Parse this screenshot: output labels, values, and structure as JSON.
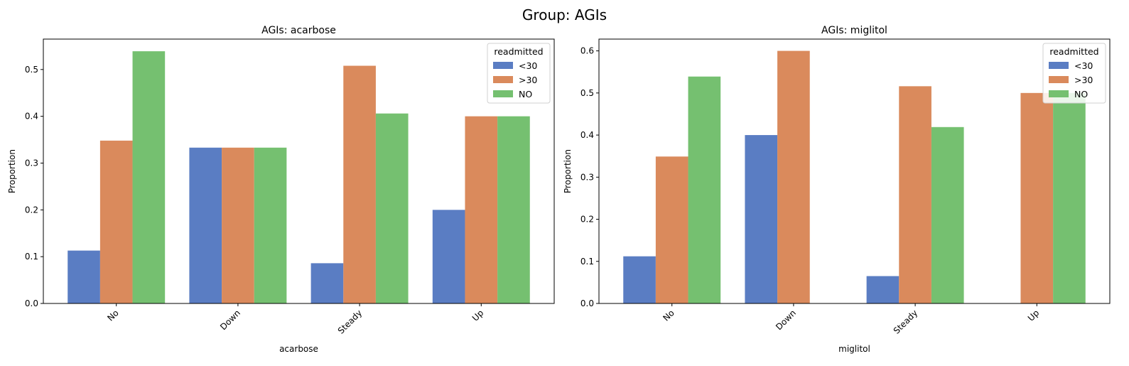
{
  "figure": {
    "suptitle": "Group: AGIs"
  },
  "chart_data": [
    {
      "type": "bar",
      "title": "AGIs: acarbose",
      "xlabel": "acarbose",
      "ylabel": "Proportion",
      "categories": [
        "No",
        "Down",
        "Steady",
        "Up"
      ],
      "ylim": [
        0,
        0.565
      ],
      "yticks": [
        0.0,
        0.1,
        0.2,
        0.3,
        0.4,
        0.5
      ],
      "ytick_labels": [
        "0.0",
        "0.1",
        "0.2",
        "0.3",
        "0.4",
        "0.5"
      ],
      "legend_title": "readmitted",
      "legend_position": "top-right",
      "grid": false,
      "series": [
        {
          "name": "<30",
          "color": "#5a7dc3",
          "values": [
            0.113,
            0.333,
            0.086,
            0.2
          ]
        },
        {
          "name": ">30",
          "color": "#da8a5c",
          "values": [
            0.348,
            0.333,
            0.508,
            0.4
          ]
        },
        {
          "name": "NO",
          "color": "#75c070",
          "values": [
            0.539,
            0.333,
            0.406,
            0.4
          ]
        }
      ]
    },
    {
      "type": "bar",
      "title": "AGIs: miglitol",
      "xlabel": "miglitol",
      "ylabel": "Proportion",
      "categories": [
        "No",
        "Down",
        "Steady",
        "Up"
      ],
      "ylim": [
        0,
        0.628
      ],
      "yticks": [
        0.0,
        0.1,
        0.2,
        0.3,
        0.4,
        0.5,
        0.6
      ],
      "ytick_labels": [
        "0.0",
        "0.1",
        "0.2",
        "0.3",
        "0.4",
        "0.5",
        "0.6"
      ],
      "legend_title": "readmitted",
      "legend_position": "top-right",
      "grid": false,
      "series": [
        {
          "name": "<30",
          "color": "#5a7dc3",
          "values": [
            0.112,
            0.4,
            0.065,
            0.0
          ]
        },
        {
          "name": ">30",
          "color": "#da8a5c",
          "values": [
            0.349,
            0.6,
            0.516,
            0.5
          ]
        },
        {
          "name": "NO",
          "color": "#75c070",
          "values": [
            0.539,
            0.0,
            0.419,
            0.5
          ]
        }
      ]
    }
  ]
}
